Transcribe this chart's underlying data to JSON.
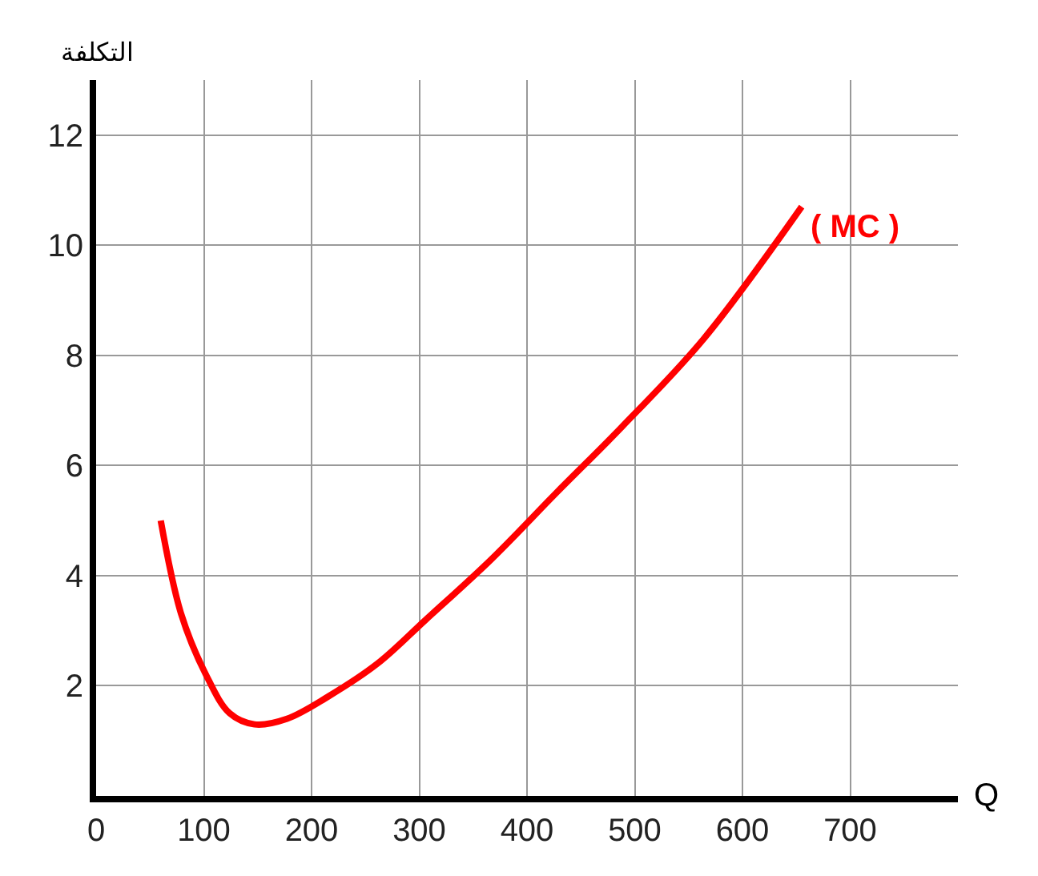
{
  "chart_data": {
    "type": "line",
    "xlabel": "Q",
    "ylabel": "التكلفة",
    "x": [
      60,
      79,
      102,
      124,
      147,
      177,
      215,
      261,
      306,
      367,
      427,
      488,
      564,
      655
    ],
    "series": [
      {
        "name": "( MC )",
        "color": "#ff0000",
        "values": [
          5.0,
          3.3,
          2.2,
          1.5,
          1.3,
          1.4,
          1.8,
          2.4,
          3.2,
          4.3,
          5.5,
          6.7,
          8.3,
          10.7
        ]
      }
    ],
    "xlim": [
      0,
      800
    ],
    "xticks": [
      0,
      100,
      200,
      300,
      400,
      500,
      600,
      700
    ],
    "ylim": [
      0,
      13
    ],
    "yticks": [
      2,
      4,
      6,
      8,
      10,
      12
    ],
    "grid": true,
    "marker": "none",
    "line_style": "solid",
    "legend": false
  }
}
